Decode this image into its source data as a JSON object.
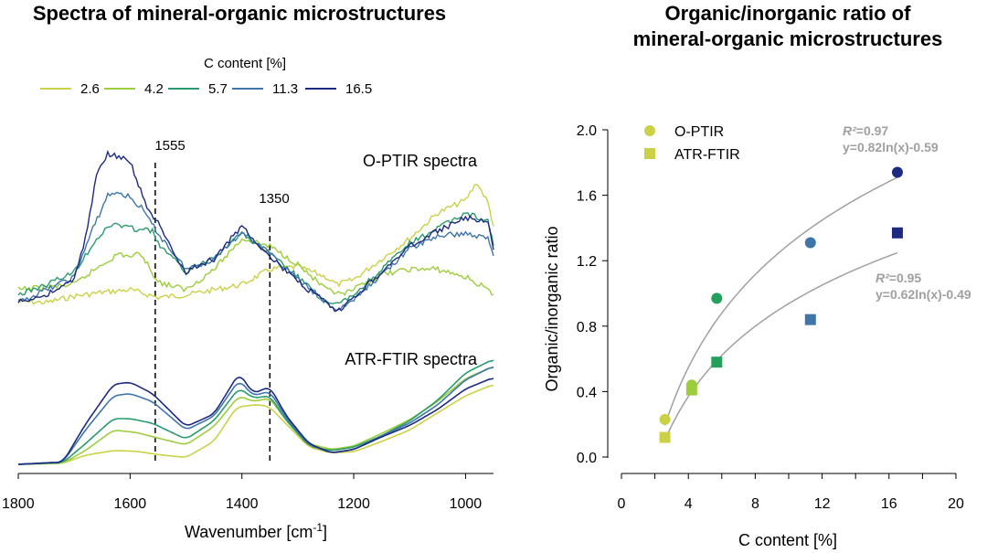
{
  "chart_data": [
    {
      "type": "line",
      "title": "Spectra of mineral-organic microstructures",
      "xlabel": "Wavenumber [cm",
      "xlabel_sup": "-1",
      "xlabel_close": "]",
      "xlim": [
        1800,
        950
      ],
      "x_reversed": true,
      "xticks": [
        1800,
        1600,
        1400,
        1200,
        1000
      ],
      "legend_title": "C content [%]",
      "legend_placement": "top",
      "panel_labels": {
        "optir": "O-PTIR spectra",
        "atr": "ATR-FTIR spectra"
      },
      "markers": [
        {
          "x": 1555,
          "label": "1555"
        },
        {
          "x": 1350,
          "label": "1350"
        }
      ],
      "series": [
        {
          "name": "2.6",
          "color": "#cbd147",
          "optir": [
            [
              1800,
              0.055
            ],
            [
              1750,
              0.05
            ],
            [
              1700,
              0.075
            ],
            [
              1650,
              0.09
            ],
            [
              1600,
              0.1
            ],
            [
              1550,
              0.07
            ],
            [
              1500,
              0.08
            ],
            [
              1450,
              0.1
            ],
            [
              1400,
              0.12
            ],
            [
              1350,
              0.18
            ],
            [
              1300,
              0.19
            ],
            [
              1250,
              0.15
            ],
            [
              1230,
              0.12
            ],
            [
              1200,
              0.14
            ],
            [
              1150,
              0.22
            ],
            [
              1100,
              0.3
            ],
            [
              1050,
              0.4
            ],
            [
              1000,
              0.45
            ],
            [
              980,
              0.52
            ],
            [
              960,
              0.44
            ],
            [
              950,
              0.35
            ]
          ],
          "atr": [
            [
              1800,
              0.0
            ],
            [
              1720,
              0.01
            ],
            [
              1680,
              0.08
            ],
            [
              1630,
              0.12
            ],
            [
              1590,
              0.115
            ],
            [
              1550,
              0.085
            ],
            [
              1500,
              0.06
            ],
            [
              1450,
              0.2
            ],
            [
              1410,
              0.5
            ],
            [
              1380,
              0.52
            ],
            [
              1365,
              0.52
            ],
            [
              1350,
              0.5
            ],
            [
              1320,
              0.35
            ],
            [
              1280,
              0.15
            ],
            [
              1240,
              0.1
            ],
            [
              1200,
              0.11
            ],
            [
              1150,
              0.2
            ],
            [
              1100,
              0.3
            ],
            [
              1050,
              0.45
            ],
            [
              1000,
              0.6
            ],
            [
              950,
              0.7
            ]
          ]
        },
        {
          "name": "4.2",
          "color": "#9ccd3c",
          "optir": [
            [
              1800,
              0.1
            ],
            [
              1750,
              0.11
            ],
            [
              1700,
              0.12
            ],
            [
              1650,
              0.2
            ],
            [
              1620,
              0.24
            ],
            [
              1600,
              0.23
            ],
            [
              1580,
              0.24
            ],
            [
              1550,
              0.13
            ],
            [
              1500,
              0.1
            ],
            [
              1450,
              0.18
            ],
            [
              1400,
              0.3
            ],
            [
              1350,
              0.27
            ],
            [
              1300,
              0.2
            ],
            [
              1250,
              0.1
            ],
            [
              1220,
              0.08
            ],
            [
              1200,
              0.1
            ],
            [
              1150,
              0.16
            ],
            [
              1100,
              0.18
            ],
            [
              1050,
              0.18
            ],
            [
              1000,
              0.15
            ],
            [
              960,
              0.1
            ],
            [
              950,
              0.07
            ]
          ],
          "atr": [
            [
              1800,
              0.0
            ],
            [
              1720,
              0.01
            ],
            [
              1680,
              0.12
            ],
            [
              1630,
              0.3
            ],
            [
              1590,
              0.28
            ],
            [
              1550,
              0.23
            ],
            [
              1500,
              0.17
            ],
            [
              1450,
              0.33
            ],
            [
              1405,
              0.6
            ],
            [
              1380,
              0.55
            ],
            [
              1350,
              0.58
            ],
            [
              1320,
              0.38
            ],
            [
              1280,
              0.18
            ],
            [
              1240,
              0.13
            ],
            [
              1200,
              0.16
            ],
            [
              1150,
              0.27
            ],
            [
              1100,
              0.39
            ],
            [
              1050,
              0.55
            ],
            [
              1000,
              0.75
            ],
            [
              950,
              0.86
            ]
          ]
        },
        {
          "name": "5.7",
          "color": "#2a9b6e",
          "optir": [
            [
              1800,
              0.08
            ],
            [
              1750,
              0.12
            ],
            [
              1700,
              0.17
            ],
            [
              1660,
              0.3
            ],
            [
              1630,
              0.36
            ],
            [
              1600,
              0.34
            ],
            [
              1560,
              0.33
            ],
            [
              1550,
              0.28
            ],
            [
              1500,
              0.17
            ],
            [
              1450,
              0.23
            ],
            [
              1400,
              0.32
            ],
            [
              1350,
              0.24
            ],
            [
              1300,
              0.15
            ],
            [
              1250,
              0.05
            ],
            [
              1230,
              0.04
            ],
            [
              1200,
              0.08
            ],
            [
              1150,
              0.18
            ],
            [
              1100,
              0.28
            ],
            [
              1050,
              0.34
            ],
            [
              1000,
              0.4
            ],
            [
              960,
              0.37
            ],
            [
              950,
              0.27
            ]
          ],
          "atr": [
            [
              1800,
              0.0
            ],
            [
              1720,
              0.015
            ],
            [
              1680,
              0.18
            ],
            [
              1630,
              0.4
            ],
            [
              1600,
              0.4
            ],
            [
              1560,
              0.36
            ],
            [
              1500,
              0.22
            ],
            [
              1450,
              0.38
            ],
            [
              1405,
              0.67
            ],
            [
              1380,
              0.58
            ],
            [
              1350,
              0.6
            ],
            [
              1320,
              0.38
            ],
            [
              1280,
              0.16
            ],
            [
              1240,
              0.12
            ],
            [
              1200,
              0.15
            ],
            [
              1150,
              0.25
            ],
            [
              1100,
              0.38
            ],
            [
              1050,
              0.56
            ],
            [
              1000,
              0.8
            ],
            [
              950,
              0.92
            ]
          ]
        },
        {
          "name": "11.3",
          "color": "#3e76aa",
          "optir": [
            [
              1800,
              0.05
            ],
            [
              1750,
              0.1
            ],
            [
              1700,
              0.15
            ],
            [
              1670,
              0.32
            ],
            [
              1640,
              0.47
            ],
            [
              1620,
              0.48
            ],
            [
              1600,
              0.46
            ],
            [
              1580,
              0.42
            ],
            [
              1550,
              0.32
            ],
            [
              1500,
              0.18
            ],
            [
              1450,
              0.22
            ],
            [
              1400,
              0.33
            ],
            [
              1350,
              0.24
            ],
            [
              1300,
              0.14
            ],
            [
              1250,
              0.05
            ],
            [
              1230,
              0.02
            ],
            [
              1200,
              0.06
            ],
            [
              1150,
              0.16
            ],
            [
              1100,
              0.26
            ],
            [
              1050,
              0.31
            ],
            [
              1000,
              0.32
            ],
            [
              960,
              0.3
            ],
            [
              950,
              0.24
            ]
          ],
          "atr": [
            [
              1800,
              0.0
            ],
            [
              1720,
              0.02
            ],
            [
              1680,
              0.3
            ],
            [
              1630,
              0.6
            ],
            [
              1600,
              0.62
            ],
            [
              1560,
              0.55
            ],
            [
              1500,
              0.3
            ],
            [
              1450,
              0.42
            ],
            [
              1405,
              0.74
            ],
            [
              1380,
              0.6
            ],
            [
              1350,
              0.64
            ],
            [
              1320,
              0.4
            ],
            [
              1280,
              0.17
            ],
            [
              1240,
              0.1
            ],
            [
              1200,
              0.13
            ],
            [
              1150,
              0.25
            ],
            [
              1100,
              0.36
            ],
            [
              1050,
              0.52
            ],
            [
              1000,
              0.74
            ],
            [
              950,
              0.86
            ]
          ]
        },
        {
          "name": "16.5",
          "color": "#1d2a80",
          "optir": [
            [
              1800,
              0.05
            ],
            [
              1750,
              0.08
            ],
            [
              1700,
              0.14
            ],
            [
              1680,
              0.3
            ],
            [
              1660,
              0.55
            ],
            [
              1640,
              0.63
            ],
            [
              1620,
              0.62
            ],
            [
              1600,
              0.6
            ],
            [
              1570,
              0.42
            ],
            [
              1550,
              0.36
            ],
            [
              1520,
              0.23
            ],
            [
              1500,
              0.17
            ],
            [
              1450,
              0.22
            ],
            [
              1400,
              0.35
            ],
            [
              1350,
              0.23
            ],
            [
              1300,
              0.13
            ],
            [
              1250,
              0.05
            ],
            [
              1230,
              0.01
            ],
            [
              1200,
              0.07
            ],
            [
              1150,
              0.17
            ],
            [
              1100,
              0.27
            ],
            [
              1050,
              0.33
            ],
            [
              1000,
              0.38
            ],
            [
              960,
              0.37
            ],
            [
              950,
              0.25
            ]
          ],
          "atr": [
            [
              1800,
              0.0
            ],
            [
              1720,
              0.02
            ],
            [
              1680,
              0.35
            ],
            [
              1630,
              0.7
            ],
            [
              1600,
              0.72
            ],
            [
              1560,
              0.62
            ],
            [
              1500,
              0.33
            ],
            [
              1450,
              0.44
            ],
            [
              1405,
              0.8
            ],
            [
              1380,
              0.62
            ],
            [
              1350,
              0.68
            ],
            [
              1320,
              0.42
            ],
            [
              1280,
              0.18
            ],
            [
              1240,
              0.1
            ],
            [
              1200,
              0.13
            ],
            [
              1150,
              0.24
            ],
            [
              1100,
              0.34
            ],
            [
              1050,
              0.48
            ],
            [
              1000,
              0.66
            ],
            [
              950,
              0.76
            ]
          ]
        }
      ]
    },
    {
      "type": "scatter",
      "title": "Organic/inorganic ratio of",
      "title_line2": "mineral-organic microstructures",
      "xlabel": "C content [%]",
      "ylabel": "Organic/inorganic ratio",
      "xlim": [
        0,
        20
      ],
      "ylim": [
        0,
        2.0
      ],
      "xticks": [
        0,
        4,
        8,
        12,
        16,
        20
      ],
      "yticks": [
        "0.0",
        "0.4",
        "0.8",
        "1.2",
        "1.6",
        "2.0"
      ],
      "legend_placement": "top-left",
      "series": [
        {
          "name": "O-PTIR",
          "marker": "circle",
          "points": [
            {
              "x": 2.6,
              "y": 0.23,
              "color": "#cbd147"
            },
            {
              "x": 4.2,
              "y": 0.44,
              "color": "#9ccd3c"
            },
            {
              "x": 5.7,
              "y": 0.97,
              "color": "#22a05b"
            },
            {
              "x": 11.3,
              "y": 1.31,
              "color": "#3e76aa"
            },
            {
              "x": 16.5,
              "y": 1.74,
              "color": "#1d2a80"
            }
          ],
          "fit": {
            "a": 0.82,
            "b": -0.59,
            "r2_label": "R²=0.97",
            "eq_label": "y=0.82ln(x)-0.59",
            "xrange": [
              2.6,
              16.5
            ]
          }
        },
        {
          "name": "ATR-FTIR",
          "marker": "square",
          "points": [
            {
              "x": 2.6,
              "y": 0.12,
              "color": "#cbd147"
            },
            {
              "x": 4.2,
              "y": 0.41,
              "color": "#9ccd3c"
            },
            {
              "x": 5.7,
              "y": 0.58,
              "color": "#22a05b"
            },
            {
              "x": 11.3,
              "y": 0.84,
              "color": "#3e76aa"
            },
            {
              "x": 16.5,
              "y": 1.37,
              "color": "#1d2a80"
            }
          ],
          "fit": {
            "a": 0.62,
            "b": -0.49,
            "r2_label": "R²=0.95",
            "eq_label": "y=0.62ln(x)-0.49",
            "xrange": [
              2.6,
              16.5
            ]
          }
        }
      ],
      "legend_color": "#cbd147",
      "fit_line_color": "#a0a0a0",
      "annotation_color": "#a0a0a0"
    }
  ]
}
